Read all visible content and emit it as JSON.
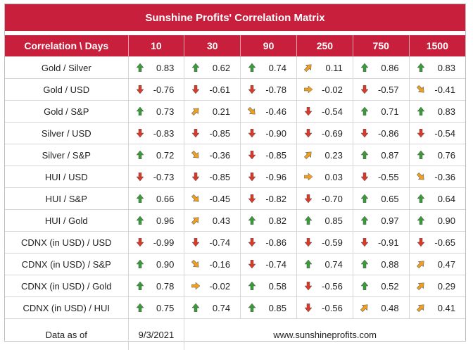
{
  "title": "Sunshine Profits' Correlation Matrix",
  "header": {
    "label": "Correlation \\ Days",
    "days": [
      "10",
      "30",
      "90",
      "250",
      "750",
      "1500"
    ]
  },
  "colors": {
    "header_bg": "#c8203c",
    "up": "#3a9a3a",
    "down": "#d83a2a",
    "side": "#f0a020"
  },
  "rows": [
    {
      "pair": "Gold / Silver",
      "values": [
        {
          "v": "0.83",
          "dir": "up"
        },
        {
          "v": "0.62",
          "dir": "up"
        },
        {
          "v": "0.74",
          "dir": "up"
        },
        {
          "v": "0.11",
          "dir": "up-right"
        },
        {
          "v": "0.86",
          "dir": "up"
        },
        {
          "v": "0.83",
          "dir": "up"
        }
      ]
    },
    {
      "pair": "Gold / USD",
      "values": [
        {
          "v": "-0.76",
          "dir": "down"
        },
        {
          "v": "-0.61",
          "dir": "down"
        },
        {
          "v": "-0.78",
          "dir": "down"
        },
        {
          "v": "-0.02",
          "dir": "right"
        },
        {
          "v": "-0.57",
          "dir": "down"
        },
        {
          "v": "-0.41",
          "dir": "down-right"
        }
      ]
    },
    {
      "pair": "Gold / S&P",
      "values": [
        {
          "v": "0.73",
          "dir": "up"
        },
        {
          "v": "0.21",
          "dir": "up-right"
        },
        {
          "v": "-0.46",
          "dir": "down-right"
        },
        {
          "v": "-0.54",
          "dir": "down"
        },
        {
          "v": "0.71",
          "dir": "up"
        },
        {
          "v": "0.83",
          "dir": "up"
        }
      ]
    },
    {
      "pair": "Silver / USD",
      "values": [
        {
          "v": "-0.83",
          "dir": "down"
        },
        {
          "v": "-0.85",
          "dir": "down"
        },
        {
          "v": "-0.90",
          "dir": "down"
        },
        {
          "v": "-0.69",
          "dir": "down"
        },
        {
          "v": "-0.86",
          "dir": "down"
        },
        {
          "v": "-0.54",
          "dir": "down"
        }
      ]
    },
    {
      "pair": "Silver / S&P",
      "values": [
        {
          "v": "0.72",
          "dir": "up"
        },
        {
          "v": "-0.36",
          "dir": "down-right"
        },
        {
          "v": "-0.85",
          "dir": "down"
        },
        {
          "v": "0.23",
          "dir": "up-right"
        },
        {
          "v": "0.87",
          "dir": "up"
        },
        {
          "v": "0.76",
          "dir": "up"
        }
      ]
    },
    {
      "pair": "HUI / USD",
      "values": [
        {
          "v": "-0.73",
          "dir": "down"
        },
        {
          "v": "-0.85",
          "dir": "down"
        },
        {
          "v": "-0.96",
          "dir": "down"
        },
        {
          "v": "0.03",
          "dir": "right"
        },
        {
          "v": "-0.55",
          "dir": "down"
        },
        {
          "v": "-0.36",
          "dir": "down-right"
        }
      ]
    },
    {
      "pair": "HUI / S&P",
      "values": [
        {
          "v": "0.66",
          "dir": "up"
        },
        {
          "v": "-0.45",
          "dir": "down-right"
        },
        {
          "v": "-0.82",
          "dir": "down"
        },
        {
          "v": "-0.70",
          "dir": "down"
        },
        {
          "v": "0.65",
          "dir": "up"
        },
        {
          "v": "0.64",
          "dir": "up"
        }
      ]
    },
    {
      "pair": "HUI / Gold",
      "values": [
        {
          "v": "0.96",
          "dir": "up"
        },
        {
          "v": "0.43",
          "dir": "up-right"
        },
        {
          "v": "0.82",
          "dir": "up"
        },
        {
          "v": "0.85",
          "dir": "up"
        },
        {
          "v": "0.97",
          "dir": "up"
        },
        {
          "v": "0.90",
          "dir": "up"
        }
      ]
    },
    {
      "pair": "CDNX (in USD) / USD",
      "values": [
        {
          "v": "-0.99",
          "dir": "down"
        },
        {
          "v": "-0.74",
          "dir": "down"
        },
        {
          "v": "-0.86",
          "dir": "down"
        },
        {
          "v": "-0.59",
          "dir": "down"
        },
        {
          "v": "-0.91",
          "dir": "down"
        },
        {
          "v": "-0.65",
          "dir": "down"
        }
      ]
    },
    {
      "pair": "CDNX (in USD) / S&P",
      "values": [
        {
          "v": "0.90",
          "dir": "up"
        },
        {
          "v": "-0.16",
          "dir": "down-right"
        },
        {
          "v": "-0.74",
          "dir": "down"
        },
        {
          "v": "0.74",
          "dir": "up"
        },
        {
          "v": "0.88",
          "dir": "up"
        },
        {
          "v": "0.47",
          "dir": "up-right"
        }
      ]
    },
    {
      "pair": "CDNX (in USD) / Gold",
      "values": [
        {
          "v": "0.78",
          "dir": "up"
        },
        {
          "v": "-0.02",
          "dir": "right"
        },
        {
          "v": "0.58",
          "dir": "up"
        },
        {
          "v": "-0.56",
          "dir": "down"
        },
        {
          "v": "0.52",
          "dir": "up"
        },
        {
          "v": "0.29",
          "dir": "up-right"
        }
      ]
    },
    {
      "pair": "CDNX (in USD) / HUI",
      "values": [
        {
          "v": "0.75",
          "dir": "up"
        },
        {
          "v": "0.74",
          "dir": "up"
        },
        {
          "v": "0.85",
          "dir": "up"
        },
        {
          "v": "-0.56",
          "dir": "down"
        },
        {
          "v": "0.48",
          "dir": "up-right"
        },
        {
          "v": "0.41",
          "dir": "up-right"
        }
      ]
    }
  ],
  "footer": {
    "label": "Data as of",
    "date": "9/3/2021",
    "website": "www.sunshineprofits.com"
  }
}
